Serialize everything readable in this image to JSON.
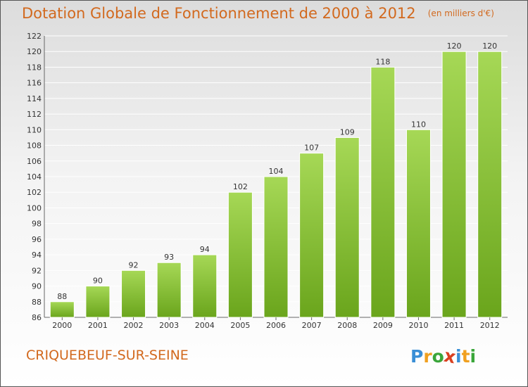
{
  "chart_data": {
    "type": "bar",
    "title": "Dotation Globale de Fonctionnement de 2000 à 2012",
    "subtitle": "(en milliers d'€)",
    "categories": [
      "2000",
      "2001",
      "2002",
      "2003",
      "2004",
      "2005",
      "2006",
      "2007",
      "2008",
      "2009",
      "2010",
      "2011",
      "2012"
    ],
    "values": [
      88,
      90,
      92,
      93,
      94,
      102,
      104,
      107,
      109,
      118,
      110,
      120,
      120
    ],
    "data_labels": [
      "88",
      "90",
      "92",
      "93",
      "94",
      "102",
      "104",
      "107",
      "109",
      "118",
      "110",
      "120",
      "120"
    ],
    "ylim": [
      86,
      122
    ],
    "yticks": [
      86,
      88,
      90,
      92,
      94,
      96,
      98,
      100,
      102,
      104,
      106,
      108,
      110,
      112,
      114,
      116,
      118,
      120,
      122
    ],
    "xlabel": "",
    "ylabel": "",
    "grid": "horizontal",
    "legend": "none"
  },
  "footer": {
    "place": "CRIQUEBEUF-SUR-SEINE"
  },
  "logo": {
    "letters": [
      "P",
      "r",
      "o",
      "x",
      "i",
      "t",
      "i"
    ],
    "colors": [
      "#3a8fd6",
      "#f0a020",
      "#3aa63a",
      "#d94020",
      "#3a8fd6",
      "#f0a020",
      "#3aa63a"
    ]
  },
  "colors": {
    "bar_top": "#a6d856",
    "bar_bottom": "#6aa51c",
    "title": "#d2691e",
    "grid": "#ffffff"
  }
}
